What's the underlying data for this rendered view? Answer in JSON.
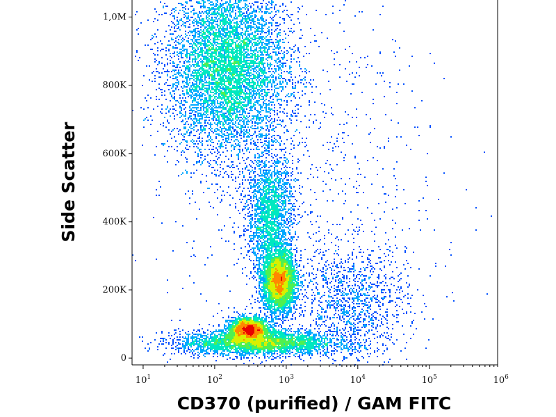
{
  "chart_data": {
    "type": "scatter",
    "title": "",
    "xlabel": "CD370 (purified) / GAM FITC",
    "ylabel": "Side Scatter",
    "x_scale": "log",
    "xlim": [
      7,
      900000
    ],
    "ylim": [
      -20000,
      1050000
    ],
    "x_ticks": [
      {
        "base": "10",
        "exp": "1",
        "value": 10
      },
      {
        "base": "10",
        "exp": "2",
        "value": 100
      },
      {
        "base": "10",
        "exp": "3",
        "value": 1000
      },
      {
        "base": "10",
        "exp": "4",
        "value": 10000
      },
      {
        "base": "10",
        "exp": "5",
        "value": 100000
      },
      {
        "base": "10",
        "exp": "6",
        "value": 1000000
      }
    ],
    "y_ticks": [
      {
        "label": "0",
        "value": 0
      },
      {
        "label": "200K",
        "value": 200000
      },
      {
        "label": "400K",
        "value": 400000
      },
      {
        "label": "600K",
        "value": 600000
      },
      {
        "label": "800K",
        "value": 800000
      },
      {
        "label": "1,0M",
        "value": 1000000
      }
    ],
    "density_colors": [
      "#0000c8",
      "#0050ff",
      "#00a8ff",
      "#00e8c0",
      "#50f050",
      "#d8f000",
      "#ff8800",
      "#e80000"
    ],
    "populations": [
      {
        "name": "high-ssc-cloud",
        "x_center": 150,
        "y_center": 850000,
        "x_log_spread": 0.42,
        "y_spread": 130000,
        "count": 9000
      },
      {
        "name": "main-dense-cluster",
        "x_center": 800,
        "y_center": 225000,
        "x_log_spread": 0.12,
        "y_spread": 45000,
        "count": 3500
      },
      {
        "name": "low-ssc-cluster",
        "x_center": 300,
        "y_center": 85000,
        "x_log_spread": 0.14,
        "y_spread": 17000,
        "count": 2200
      },
      {
        "name": "bridge",
        "x_center": 600,
        "y_center": 420000,
        "x_log_spread": 0.16,
        "y_spread": 90000,
        "count": 2200
      },
      {
        "name": "baseline-band",
        "x_center": 400,
        "y_center": 45000,
        "x_log_spread": 0.55,
        "y_spread": 18000,
        "count": 3500
      },
      {
        "name": "right-diagonal-tail",
        "x_center": 8000,
        "y_center": 160000,
        "x_log_spread": 0.4,
        "y_spread": 90000,
        "count": 1200
      },
      {
        "name": "sparse-background",
        "x_center": 2000,
        "y_center": 500000,
        "x_log_spread": 0.9,
        "y_spread": 300000,
        "count": 900
      }
    ]
  }
}
